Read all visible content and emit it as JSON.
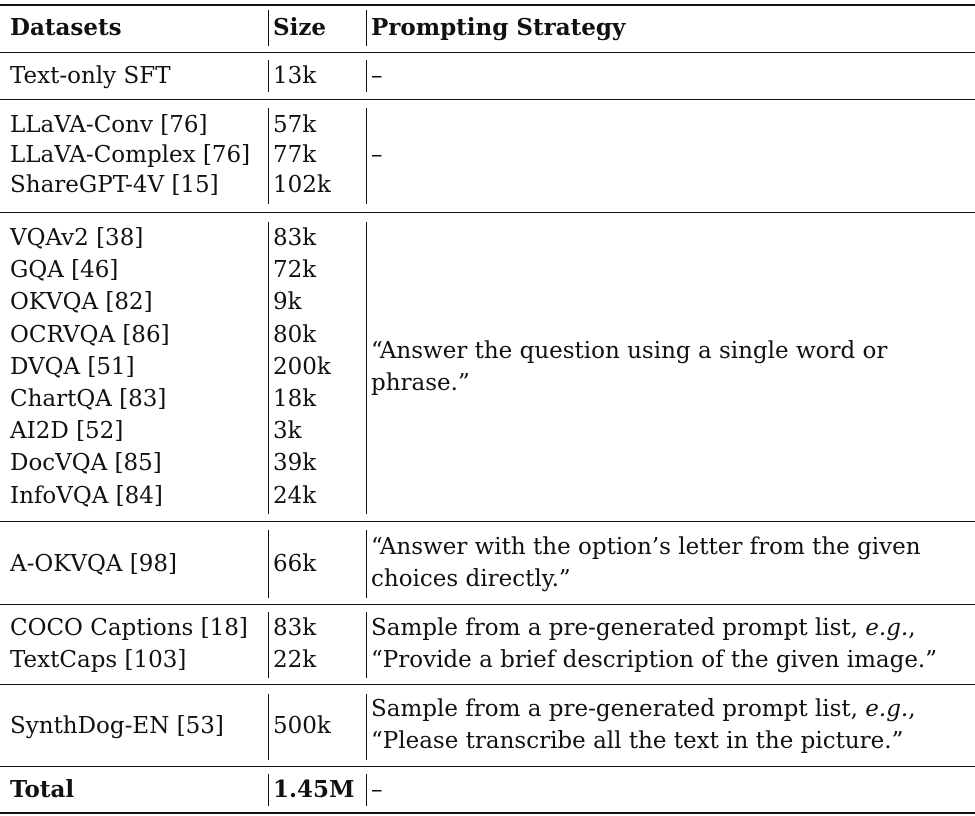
{
  "headers": {
    "datasets": "Datasets",
    "size": "Size",
    "strategy": "Prompting Strategy"
  },
  "groups": [
    {
      "rows": [
        {
          "dataset": "Text-only SFT",
          "size": "13k"
        }
      ],
      "strategy": [
        "–"
      ]
    },
    {
      "rows": [
        {
          "dataset": "LLaVA-Conv [76]",
          "size": "57k"
        },
        {
          "dataset": "LLaVA-Complex [76]",
          "size": "77k"
        },
        {
          "dataset": "ShareGPT-4V [15]",
          "size": "102k"
        }
      ],
      "strategy": [
        "–"
      ]
    },
    {
      "rows": [
        {
          "dataset": "VQAv2 [38]",
          "size": "83k"
        },
        {
          "dataset": "GQA [46]",
          "size": "72k"
        },
        {
          "dataset": "OKVQA [82]",
          "size": "9k"
        },
        {
          "dataset": "OCRVQA [86]",
          "size": "80k"
        },
        {
          "dataset": "DVQA [51]",
          "size": "200k"
        },
        {
          "dataset": "ChartQA [83]",
          "size": "18k"
        },
        {
          "dataset": "AI2D [52]",
          "size": "3k"
        },
        {
          "dataset": "DocVQA [85]",
          "size": "39k"
        },
        {
          "dataset": "InfoVQA [84]",
          "size": "24k"
        }
      ],
      "strategy": [
        "“Answer the question using a single word or",
        "phrase.”"
      ]
    },
    {
      "rows": [
        {
          "dataset": "A-OKVQA [98]",
          "size": "66k"
        }
      ],
      "strategy": [
        "“Answer with the option’s letter from the given",
        "choices directly.”"
      ]
    },
    {
      "rows": [
        {
          "dataset": "COCO Captions [18]",
          "size": "83k"
        },
        {
          "dataset": "TextCaps [103]",
          "size": "22k"
        }
      ],
      "strategy_prefix": "Sample from a pre-generated prompt list, ",
      "strategy_eg": "e.g.",
      "strategy_suffix": ",",
      "strategy_line2": "“Provide a brief description of the given image.”"
    },
    {
      "rows": [
        {
          "dataset": "SynthDog-EN [53]",
          "size": "500k"
        }
      ],
      "strategy_prefix": "Sample from a pre-generated prompt list, ",
      "strategy_eg": "e.g.",
      "strategy_suffix": ",",
      "strategy_line2": "“Please transcribe all the text in the picture.”"
    }
  ],
  "total": {
    "label": "Total",
    "size": "1.45M",
    "strategy": "–"
  }
}
